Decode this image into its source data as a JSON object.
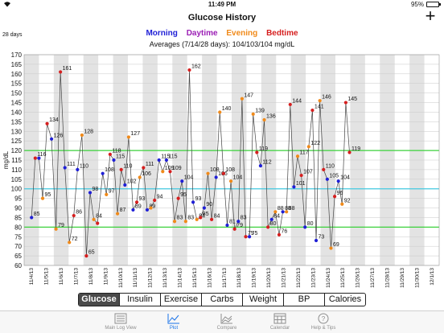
{
  "status": {
    "time": "11:49 PM",
    "battery": "95%",
    "battery_level": 0.95
  },
  "nav": {
    "title": "Glucose History",
    "add_label": "+"
  },
  "range_label": "28 days",
  "legend": [
    {
      "label": "Morning",
      "color": "#1f1fd6"
    },
    {
      "label": "Daytime",
      "color": "#9b1fb5"
    },
    {
      "label": "Evening",
      "color": "#f08a1a"
    },
    {
      "label": "Bedtime",
      "color": "#d61f1f"
    }
  ],
  "averages": "Averages (7/14/28 days): 104/103/104 mg/dL",
  "chart_data": {
    "type": "line",
    "ylabel": "mg/dL",
    "ylim": [
      60,
      170
    ],
    "y_ticks": [
      60,
      65,
      70,
      75,
      80,
      85,
      90,
      95,
      100,
      105,
      110,
      115,
      120,
      125,
      130,
      135,
      140,
      145,
      150,
      155,
      160,
      165,
      170
    ],
    "target_range": [
      80,
      120
    ],
    "target_line": 100,
    "target_range_color": "#3bd13b",
    "target_line_color": "#43c8e0",
    "line_color": "#444444",
    "categories": [
      "11/4/13",
      "11/5/13",
      "11/6/13",
      "11/7/13",
      "11/8/13",
      "11/9/13",
      "11/10/13",
      "11/11/13",
      "11/12/13",
      "11/13/13",
      "11/14/13",
      "11/15/13",
      "11/16/13",
      "11/17/13",
      "11/18/13",
      "11/19/13",
      "11/20/13",
      "11/21/13",
      "11/22/13",
      "11/23/13",
      "11/24/13",
      "11/25/13",
      "11/26/13",
      "11/27/13",
      "11/28/13",
      "11/29/13",
      "11/30/13",
      "12/1/13"
    ],
    "points": [
      {
        "x": 0.0,
        "y": 85,
        "c": "M",
        "l": "85"
      },
      {
        "x": 0.25,
        "y": 116,
        "c": "B",
        "l": "116"
      },
      {
        "x": 0.5,
        "y": 116,
        "c": "M",
        "l": ""
      },
      {
        "x": 0.75,
        "y": 95,
        "c": "E",
        "l": "95"
      },
      {
        "x": 1.05,
        "y": 134,
        "c": "B",
        "l": "134"
      },
      {
        "x": 1.35,
        "y": 126,
        "c": "M",
        "l": "126"
      },
      {
        "x": 1.65,
        "y": 79,
        "c": "E",
        "l": "79"
      },
      {
        "x": 1.95,
        "y": 161,
        "c": "B",
        "l": "161"
      },
      {
        "x": 2.25,
        "y": 111,
        "c": "M",
        "l": "111"
      },
      {
        "x": 2.55,
        "y": 72,
        "c": "E",
        "l": "72"
      },
      {
        "x": 2.85,
        "y": 86,
        "c": "B",
        "l": "86"
      },
      {
        "x": 3.1,
        "y": 110,
        "c": "M",
        "l": "110"
      },
      {
        "x": 3.4,
        "y": 128,
        "c": "E",
        "l": "128"
      },
      {
        "x": 3.7,
        "y": 65,
        "c": "B",
        "l": "65"
      },
      {
        "x": 3.95,
        "y": 98,
        "c": "M",
        "l": "98"
      },
      {
        "x": 4.2,
        "y": 84,
        "c": "E",
        "l": "84"
      },
      {
        "x": 4.45,
        "y": 82,
        "c": "B",
        "l": ""
      },
      {
        "x": 4.8,
        "y": 108,
        "c": "M",
        "l": "108"
      },
      {
        "x": 5.05,
        "y": 97,
        "c": "E",
        "l": "97"
      },
      {
        "x": 5.3,
        "y": 118,
        "c": "B",
        "l": "118"
      },
      {
        "x": 5.55,
        "y": 115,
        "c": "M",
        "l": "115"
      },
      {
        "x": 5.8,
        "y": 87,
        "c": "E",
        "l": "87"
      },
      {
        "x": 6.05,
        "y": 110,
        "c": "B",
        "l": "110"
      },
      {
        "x": 6.3,
        "y": 102,
        "c": "M",
        "l": "102"
      },
      {
        "x": 6.55,
        "y": 127,
        "c": "E",
        "l": "127"
      },
      {
        "x": 6.85,
        "y": 89,
        "c": "M",
        "l": "89"
      },
      {
        "x": 7.1,
        "y": 93,
        "c": "B",
        "l": "93"
      },
      {
        "x": 7.3,
        "y": 106,
        "c": "E",
        "l": "106"
      },
      {
        "x": 7.55,
        "y": 111,
        "c": "B",
        "l": "111"
      },
      {
        "x": 7.8,
        "y": 89,
        "c": "M",
        "l": "89"
      },
      {
        "x": 8.05,
        "y": 90,
        "c": "E",
        "l": ""
      },
      {
        "x": 8.3,
        "y": 94,
        "c": "B",
        "l": "94"
      },
      {
        "x": 8.6,
        "y": 115,
        "c": "M",
        "l": "115"
      },
      {
        "x": 8.85,
        "y": 109,
        "c": "E",
        "l": "109"
      },
      {
        "x": 9.1,
        "y": 115,
        "c": "M",
        "l": "115"
      },
      {
        "x": 9.35,
        "y": 109,
        "c": "B",
        "l": "109"
      },
      {
        "x": 9.65,
        "y": 83,
        "c": "E",
        "l": "83"
      },
      {
        "x": 9.9,
        "y": 95,
        "c": "B",
        "l": "95"
      },
      {
        "x": 10.15,
        "y": 104,
        "c": "M",
        "l": "104"
      },
      {
        "x": 10.4,
        "y": 83,
        "c": "E",
        "l": "83"
      },
      {
        "x": 10.65,
        "y": 162,
        "c": "B",
        "l": "162"
      },
      {
        "x": 10.9,
        "y": 93,
        "c": "M",
        "l": "93"
      },
      {
        "x": 11.15,
        "y": 84,
        "c": "E",
        "l": "84"
      },
      {
        "x": 11.4,
        "y": 85,
        "c": "B",
        "l": "85"
      },
      {
        "x": 11.65,
        "y": 90,
        "c": "M",
        "l": "90"
      },
      {
        "x": 11.9,
        "y": 108,
        "c": "E",
        "l": "108"
      },
      {
        "x": 12.15,
        "y": 84,
        "c": "B",
        "l": "84"
      },
      {
        "x": 12.45,
        "y": 106,
        "c": "M",
        "l": "106"
      },
      {
        "x": 12.7,
        "y": 140,
        "c": "E",
        "l": "140"
      },
      {
        "x": 12.95,
        "y": 108,
        "c": "B",
        "l": "108"
      },
      {
        "x": 13.2,
        "y": 81,
        "c": "M",
        "l": "81"
      },
      {
        "x": 13.45,
        "y": 104,
        "c": "E",
        "l": "104"
      },
      {
        "x": 13.7,
        "y": 79,
        "c": "B",
        "l": "79"
      },
      {
        "x": 13.95,
        "y": 83,
        "c": "M",
        "l": "83"
      },
      {
        "x": 14.2,
        "y": 147,
        "c": "E",
        "l": "147"
      },
      {
        "x": 14.45,
        "y": 75,
        "c": "B",
        "l": "75"
      },
      {
        "x": 14.7,
        "y": 75,
        "c": "M",
        "l": "75"
      },
      {
        "x": 14.95,
        "y": 139,
        "c": "E",
        "l": "139"
      },
      {
        "x": 15.2,
        "y": 119,
        "c": "B",
        "l": "119"
      },
      {
        "x": 15.45,
        "y": 112,
        "c": "M",
        "l": "112"
      },
      {
        "x": 15.7,
        "y": 136,
        "c": "E",
        "l": "136"
      },
      {
        "x": 15.95,
        "y": 80,
        "c": "B",
        "l": "80"
      },
      {
        "x": 16.2,
        "y": 84,
        "c": "M",
        "l": "84"
      },
      {
        "x": 16.45,
        "y": 88,
        "c": "E",
        "l": "88"
      },
      {
        "x": 16.7,
        "y": 76,
        "c": "B",
        "l": "76"
      },
      {
        "x": 16.95,
        "y": 88,
        "c": "M",
        "l": "88"
      },
      {
        "x": 17.2,
        "y": 88,
        "c": "E",
        "l": "88"
      },
      {
        "x": 17.45,
        "y": 144,
        "c": "B",
        "l": "144"
      },
      {
        "x": 17.7,
        "y": 101,
        "c": "M",
        "l": "101"
      },
      {
        "x": 17.95,
        "y": 117,
        "c": "E",
        "l": "117"
      },
      {
        "x": 18.2,
        "y": 107,
        "c": "B",
        "l": "107"
      },
      {
        "x": 18.45,
        "y": 80,
        "c": "M",
        "l": "80"
      },
      {
        "x": 18.7,
        "y": 122,
        "c": "E",
        "l": "122"
      },
      {
        "x": 18.95,
        "y": 141,
        "c": "B",
        "l": "141"
      },
      {
        "x": 19.2,
        "y": 73,
        "c": "M",
        "l": "73"
      },
      {
        "x": 19.45,
        "y": 146,
        "c": "E",
        "l": "146"
      },
      {
        "x": 19.7,
        "y": 110,
        "c": "B",
        "l": "110"
      },
      {
        "x": 19.95,
        "y": 105,
        "c": "M",
        "l": "105"
      },
      {
        "x": 20.2,
        "y": 69,
        "c": "E",
        "l": "69"
      },
      {
        "x": 20.45,
        "y": 96,
        "c": "B",
        "l": "96"
      },
      {
        "x": 20.7,
        "y": 104,
        "c": "M",
        "l": "104"
      },
      {
        "x": 20.95,
        "y": 92,
        "c": "E",
        "l": "92"
      },
      {
        "x": 21.2,
        "y": 145,
        "c": "B",
        "l": "145"
      },
      {
        "x": 21.45,
        "y": 119,
        "c": "B",
        "l": "119"
      }
    ]
  },
  "segments": [
    "Glucose",
    "Insulin",
    "Exercise",
    "Carbs",
    "Weight",
    "BP",
    "Calories"
  ],
  "active_segment": 0,
  "tabs": [
    {
      "label": "Main Log View",
      "icon": "list-icon"
    },
    {
      "label": "Plot",
      "icon": "plot-icon",
      "active": true
    },
    {
      "label": "Compare",
      "icon": "compare-icon"
    },
    {
      "label": "Calendar",
      "icon": "calendar-icon"
    },
    {
      "label": "Help & Tips",
      "icon": "help-icon"
    }
  ]
}
